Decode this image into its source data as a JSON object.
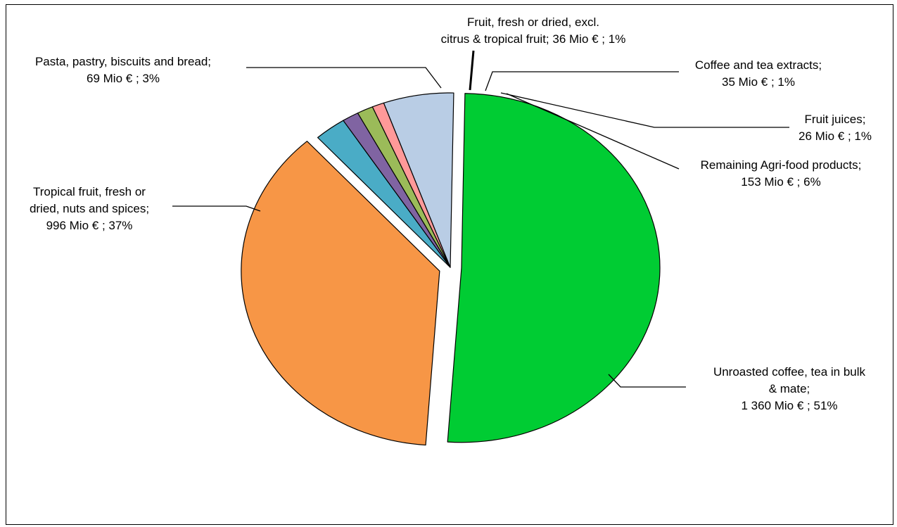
{
  "chart_data": {
    "type": "pie",
    "title": "",
    "slices": [
      {
        "name": "Unroasted coffee, tea in bulk & mate",
        "value": 1360,
        "pct": "51%",
        "color": "#00cc33",
        "label_lines": [
          "Unroasted coffee, tea in bulk",
          "& mate;",
          "1 360 Mio € ; 51%"
        ]
      },
      {
        "name": "Tropical fruit, fresh or dried, nuts and spices",
        "value": 996,
        "pct": "37%",
        "color": "#f79646",
        "label_lines": [
          "Tropical fruit, fresh or",
          "dried, nuts and spices;",
          "996 Mio € ; 37%"
        ]
      },
      {
        "name": "Pasta, pastry, biscuits and bread",
        "value": 69,
        "pct": "3%",
        "color": "#4aacc6",
        "label_lines": [
          "Pasta, pastry, biscuits and bread;",
          "69 Mio € ; 3%"
        ]
      },
      {
        "name": "Fruit, fresh or dried, excl. citrus & tropical fruit",
        "value": 36,
        "pct": "1%",
        "color": "#8064a2",
        "label_lines": [
          "Fruit, fresh or dried, excl.",
          "citrus & tropical fruit; 36 Mio € ; 1%"
        ]
      },
      {
        "name": "Coffee and tea extracts",
        "value": 35,
        "pct": "1%",
        "color": "#9bbb59",
        "label_lines": [
          "Coffee and tea extracts;",
          "35 Mio € ; 1%"
        ]
      },
      {
        "name": "Fruit juices",
        "value": 26,
        "pct": "1%",
        "color": "#ff9999",
        "label_lines": [
          "Fruit juices;",
          "26 Mio € ; 1%"
        ]
      },
      {
        "name": "Remaining Agri-food products",
        "value": 153,
        "pct": "6%",
        "color": "#b9cde5",
        "label_lines": [
          "Remaining Agri-food products;",
          "153 Mio € ; 6%"
        ]
      }
    ],
    "legend": "none"
  }
}
